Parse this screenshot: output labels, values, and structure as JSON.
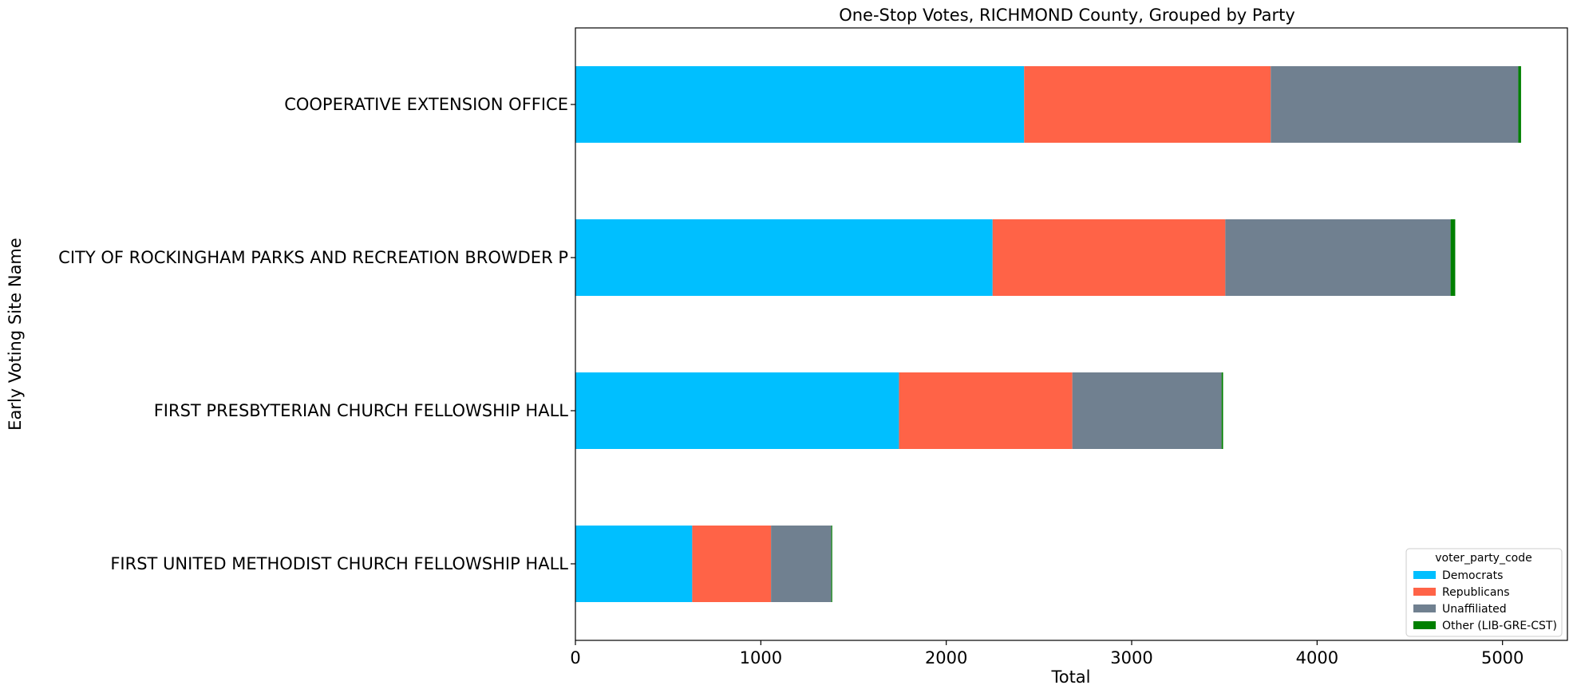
{
  "chart_data": {
    "type": "bar",
    "orientation": "horizontal",
    "stacked": true,
    "title": "One-Stop Votes, RICHMOND County, Grouped by Party",
    "xlabel": "Total",
    "ylabel": "Early Voting Site Name",
    "xlim": [
      0,
      5350
    ],
    "x_ticks": [
      0,
      1000,
      2000,
      3000,
      4000,
      5000
    ],
    "grid": false,
    "legend_title": "voter_party_code",
    "legend_position": "bottom-right",
    "categories": [
      "COOPERATIVE EXTENSION OFFICE",
      "CITY OF ROCKINGHAM PARKS AND RECREATION BROWDER P",
      "FIRST PRESBYTERIAN CHURCH FELLOWSHIP HALL",
      "FIRST UNITED METHODIST CHURCH FELLOWSHIP HALL"
    ],
    "series": [
      {
        "name": "Democrats",
        "color": "#00bfff",
        "values": [
          2420,
          2250,
          1745,
          630
        ]
      },
      {
        "name": "Republicans",
        "color": "#ff6347",
        "values": [
          1330,
          1255,
          935,
          425
        ]
      },
      {
        "name": "Unaffiliated",
        "color": "#708090",
        "values": [
          1335,
          1215,
          805,
          325
        ]
      },
      {
        "name": "Other (LIB-GRE-CST)",
        "color": "#008000",
        "values": [
          15,
          25,
          8,
          5
        ]
      }
    ]
  }
}
